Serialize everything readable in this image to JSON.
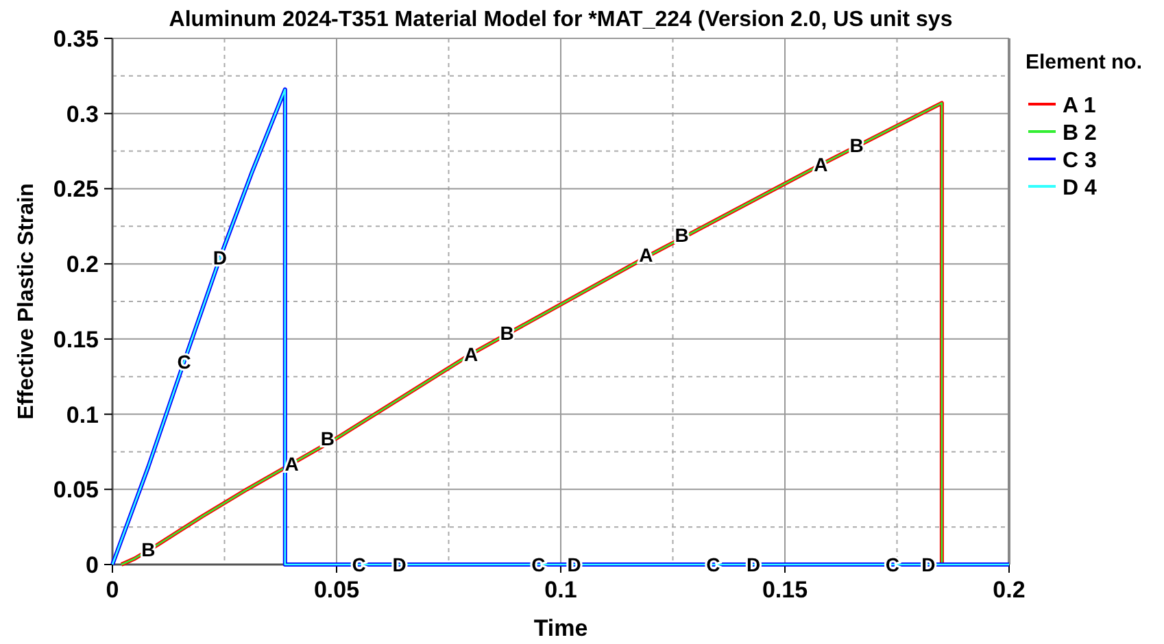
{
  "chart_data": {
    "type": "line",
    "title": "Aluminum 2024-T351 Material Model for *MAT_224 (Version 2.0, US unit sys",
    "xlabel": "Time",
    "ylabel": "Effective Plastic Strain",
    "legend_title": "Element no.",
    "legend": "right",
    "grid": true,
    "marker": "none",
    "line_style": "solid",
    "xlim": [
      0,
      0.2
    ],
    "ylim": [
      0,
      0.35
    ],
    "xticks": [
      0,
      {
        "value": 0.025,
        "label": null
      },
      0.05,
      {
        "value": 0.075,
        "label": null
      },
      0.1,
      {
        "value": 0.125,
        "label": null
      },
      0.15,
      {
        "value": 0.175,
        "label": null
      },
      0.2
    ],
    "yticks": [
      0,
      {
        "value": 0.025,
        "label": null
      },
      0.05,
      {
        "value": 0.075,
        "label": null
      },
      0.1,
      {
        "value": 0.125,
        "label": null
      },
      0.15,
      {
        "value": 0.175,
        "label": null
      },
      0.2,
      {
        "value": 0.225,
        "label": null
      },
      0.25,
      {
        "value": 0.275,
        "label": null
      },
      0.3,
      {
        "value": 0.325,
        "label": null
      },
      0.35
    ],
    "series": [
      {
        "name": "A 1",
        "color": "#ff0000",
        "x": [
          0.002,
          0.005,
          0.01,
          0.02,
          0.03,
          0.04,
          0.05,
          0.08,
          0.12,
          0.158,
          0.185,
          0.185,
          0.2
        ],
        "values": [
          0,
          0.004,
          0.013,
          0.032,
          0.05,
          0.067,
          0.084,
          0.14,
          0.206,
          0.266,
          0.307,
          0,
          0
        ]
      },
      {
        "name": "B 2",
        "color": "#33ee33",
        "x": [
          0.002,
          0.005,
          0.01,
          0.02,
          0.03,
          0.04,
          0.05,
          0.08,
          0.12,
          0.158,
          0.185,
          0.185,
          0.2
        ],
        "values": [
          0,
          0.004,
          0.013,
          0.032,
          0.05,
          0.067,
          0.084,
          0.14,
          0.206,
          0.266,
          0.307,
          0,
          0
        ]
      },
      {
        "name": "C 3",
        "color": "#0000ff",
        "x": [
          0,
          0.008,
          0.016,
          0.024,
          0.031,
          0.0385,
          0.0385,
          0.2
        ],
        "values": [
          0,
          0.065,
          0.135,
          0.204,
          0.26,
          0.316,
          0,
          0
        ]
      },
      {
        "name": "D 4",
        "color": "#33ffff",
        "x": [
          0,
          0.008,
          0.016,
          0.024,
          0.031,
          0.0385,
          0.0385,
          0.2
        ],
        "values": [
          0,
          0.065,
          0.135,
          0.204,
          0.26,
          0.316,
          0,
          0
        ]
      }
    ],
    "annotations": [
      {
        "text": "A",
        "x": 0.04,
        "y": 0.067
      },
      {
        "text": "A",
        "x": 0.08,
        "y": 0.14
      },
      {
        "text": "A",
        "x": 0.119,
        "y": 0.206
      },
      {
        "text": "A",
        "x": 0.158,
        "y": 0.266
      },
      {
        "text": "B",
        "x": 0.008,
        "y": 0.01
      },
      {
        "text": "B",
        "x": 0.048,
        "y": 0.084
      },
      {
        "text": "B",
        "x": 0.088,
        "y": 0.154
      },
      {
        "text": "B",
        "x": 0.127,
        "y": 0.219
      },
      {
        "text": "B",
        "x": 0.166,
        "y": 0.279
      },
      {
        "text": "C",
        "x": 0.016,
        "y": 0.135
      },
      {
        "text": "C",
        "x": 0.055,
        "y": 0
      },
      {
        "text": "C",
        "x": 0.095,
        "y": 0
      },
      {
        "text": "C",
        "x": 0.134,
        "y": 0
      },
      {
        "text": "C",
        "x": 0.174,
        "y": 0
      },
      {
        "text": "D",
        "x": 0.024,
        "y": 0.204
      },
      {
        "text": "D",
        "x": 0.064,
        "y": 0
      },
      {
        "text": "D",
        "x": 0.103,
        "y": 0
      },
      {
        "text": "D",
        "x": 0.143,
        "y": 0
      },
      {
        "text": "D",
        "x": 0.182,
        "y": 0
      }
    ]
  }
}
